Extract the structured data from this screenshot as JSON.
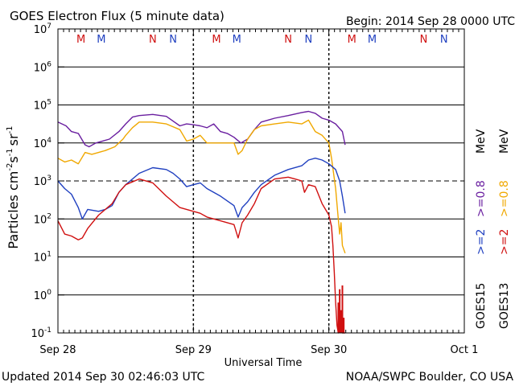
{
  "chart_data": {
    "type": "line",
    "title": "GOES Electron Flux (5 minute data)",
    "begin_label": "Begin: 2014 Sep 28 0000 UTC",
    "xlabel": "Universal Time",
    "ylabel_parts": {
      "main": "Particles cm",
      "e1": "-2",
      "s": "s",
      "e2": "-1",
      "sr": "sr",
      "e3": "-1"
    },
    "x_range_days": [
      0,
      3
    ],
    "x_ticks": [
      {
        "d": 0,
        "label": "Sep 28"
      },
      {
        "d": 1,
        "label": "Sep 29"
      },
      {
        "d": 2,
        "label": "Sep 30"
      },
      {
        "d": 3,
        "label": "Oct 1"
      }
    ],
    "y_scale": "log",
    "y_range_exp": [
      -1,
      7
    ],
    "y_ticks": [
      {
        "exp": 7,
        "base": "10",
        "sup": "7"
      },
      {
        "exp": 6,
        "base": "10",
        "sup": "6"
      },
      {
        "exp": 5,
        "base": "10",
        "sup": "5"
      },
      {
        "exp": 4,
        "base": "10",
        "sup": "4"
      },
      {
        "exp": 3,
        "base": "10",
        "sup": "3"
      },
      {
        "exp": 2,
        "base": "10",
        "sup": "2"
      },
      {
        "exp": 1,
        "base": "10",
        "sup": "1"
      },
      {
        "exp": 0,
        "base": "10",
        "sup": "0"
      },
      {
        "exp": -1,
        "base": "10",
        "sup": "-1"
      }
    ],
    "threshold_exp": 3,
    "mn_markers": [
      {
        "d": 0.17,
        "label": "M",
        "color": "#d01010"
      },
      {
        "d": 0.32,
        "label": "M",
        "color": "#2040c0"
      },
      {
        "d": 0.7,
        "label": "N",
        "color": "#d01010"
      },
      {
        "d": 0.85,
        "label": "N",
        "color": "#2040c0"
      },
      {
        "d": 1.17,
        "label": "M",
        "color": "#d01010"
      },
      {
        "d": 1.32,
        "label": "M",
        "color": "#2040c0"
      },
      {
        "d": 1.7,
        "label": "N",
        "color": "#d01010"
      },
      {
        "d": 1.85,
        "label": "N",
        "color": "#2040c0"
      },
      {
        "d": 2.17,
        "label": "M",
        "color": "#d01010"
      },
      {
        "d": 2.32,
        "label": "M",
        "color": "#2040c0"
      },
      {
        "d": 2.7,
        "label": "N",
        "color": "#d01010"
      },
      {
        "d": 2.85,
        "label": "N",
        "color": "#2040c0"
      }
    ],
    "legend": {
      "sat1": "GOES15",
      "sat2": "GOES13",
      "e2_label": ">=2",
      "e08_label": ">=0.8",
      "unit": "MeV",
      "col_goes15_e2": "#2040c0",
      "col_goes15_e08": "#6a1fa0",
      "col_goes13_e2": "#d01010",
      "col_goes13_e08": "#f0a800"
    },
    "series": [
      {
        "name": "GOES15 >=0.8 MeV",
        "color": "#6a1fa0",
        "x": [
          0,
          0.06,
          0.1,
          0.15,
          0.2,
          0.23,
          0.28,
          0.33,
          0.38,
          0.45,
          0.5,
          0.55,
          0.6,
          0.7,
          0.8,
          0.9,
          0.95,
          1.0,
          1.05,
          1.1,
          1.15,
          1.2,
          1.25,
          1.3,
          1.35,
          1.4,
          1.45,
          1.5,
          1.55,
          1.6,
          1.7,
          1.8,
          1.85,
          1.9,
          1.95,
          2.0,
          2.05,
          2.1,
          2.12
        ],
        "y": [
          4.55,
          4.45,
          4.3,
          4.25,
          3.95,
          3.9,
          4.0,
          4.05,
          4.1,
          4.3,
          4.5,
          4.68,
          4.72,
          4.75,
          4.7,
          4.45,
          4.5,
          4.48,
          4.45,
          4.4,
          4.5,
          4.3,
          4.25,
          4.15,
          4.0,
          4.1,
          4.35,
          4.55,
          4.6,
          4.65,
          4.72,
          4.8,
          4.83,
          4.78,
          4.65,
          4.6,
          4.5,
          4.3,
          3.95
        ]
      },
      {
        "name": "GOES13 >=0.8 MeV",
        "color": "#f0a800",
        "x": [
          0,
          0.05,
          0.1,
          0.15,
          0.2,
          0.25,
          0.3,
          0.35,
          0.42,
          0.48,
          0.5,
          0.55,
          0.6,
          0.7,
          0.8,
          0.9,
          0.95,
          1.0,
          1.05,
          1.1,
          1.2,
          1.3,
          1.33,
          1.36,
          1.4,
          1.45,
          1.5,
          1.6,
          1.7,
          1.8,
          1.85,
          1.9,
          1.95,
          2.0,
          2.02,
          2.05,
          2.07,
          2.08,
          2.09,
          2.1,
          2.12
        ],
        "y": [
          3.6,
          3.5,
          3.55,
          3.45,
          3.75,
          3.7,
          3.75,
          3.8,
          3.9,
          4.1,
          4.2,
          4.4,
          4.55,
          4.55,
          4.5,
          4.35,
          4.05,
          4.1,
          4.2,
          4.0,
          4.0,
          4.0,
          3.7,
          3.8,
          4.1,
          4.35,
          4.45,
          4.5,
          4.55,
          4.5,
          4.6,
          4.3,
          4.2,
          4.0,
          3.6,
          2.8,
          2.0,
          1.6,
          1.9,
          1.3,
          1.1
        ]
      },
      {
        "name": "GOES15 >=2 MeV",
        "color": "#2040c0",
        "x": [
          0,
          0.05,
          0.1,
          0.15,
          0.18,
          0.22,
          0.3,
          0.35,
          0.4,
          0.45,
          0.5,
          0.6,
          0.7,
          0.8,
          0.85,
          0.9,
          0.95,
          1.0,
          1.05,
          1.1,
          1.2,
          1.3,
          1.33,
          1.36,
          1.4,
          1.45,
          1.5,
          1.6,
          1.7,
          1.8,
          1.85,
          1.9,
          1.95,
          2.0,
          2.05,
          2.08,
          2.1,
          2.12
        ],
        "y": [
          3.0,
          2.8,
          2.65,
          2.3,
          2.0,
          2.25,
          2.2,
          2.25,
          2.35,
          2.7,
          2.9,
          3.2,
          3.35,
          3.3,
          3.2,
          3.05,
          2.85,
          2.9,
          2.95,
          2.8,
          2.6,
          2.35,
          2.05,
          2.3,
          2.45,
          2.7,
          2.9,
          3.15,
          3.3,
          3.4,
          3.55,
          3.6,
          3.55,
          3.45,
          3.3,
          3.0,
          2.6,
          2.15
        ]
      },
      {
        "name": "GOES13 >=2 MeV",
        "color": "#d01010",
        "x": [
          0,
          0.05,
          0.1,
          0.15,
          0.18,
          0.22,
          0.3,
          0.35,
          0.4,
          0.45,
          0.5,
          0.6,
          0.7,
          0.8,
          0.85,
          0.9,
          0.95,
          1.0,
          1.05,
          1.1,
          1.2,
          1.3,
          1.33,
          1.36,
          1.4,
          1.45,
          1.5,
          1.6,
          1.7,
          1.75,
          1.8,
          1.82,
          1.85,
          1.9,
          1.95,
          2.0,
          2.02,
          2.03,
          2.04,
          2.05,
          2.06,
          2.07,
          2.08,
          2.1,
          2.12
        ],
        "y": [
          1.95,
          1.6,
          1.55,
          1.45,
          1.5,
          1.75,
          2.1,
          2.25,
          2.4,
          2.7,
          2.9,
          3.05,
          2.95,
          2.6,
          2.45,
          2.3,
          2.25,
          2.2,
          2.15,
          2.05,
          1.95,
          1.85,
          1.5,
          1.9,
          2.1,
          2.4,
          2.8,
          3.05,
          3.1,
          3.05,
          3.0,
          2.7,
          2.9,
          2.85,
          2.4,
          2.1,
          1.8,
          1.3,
          0.6,
          -0.2,
          -0.8,
          -1.0,
          -0.5,
          -1.0,
          -1.0
        ]
      }
    ],
    "spikes": {
      "color": "#d01010",
      "x": [
        2.07,
        2.08,
        2.09,
        2.1,
        2.11
      ],
      "y": [
        -0.2,
        0.15,
        -0.4,
        0.25,
        -0.6
      ]
    }
  },
  "footer": {
    "updated": "Updated 2014 Sep 30 02:46:03 UTC",
    "source": "NOAA/SWPC Boulder, CO USA"
  }
}
